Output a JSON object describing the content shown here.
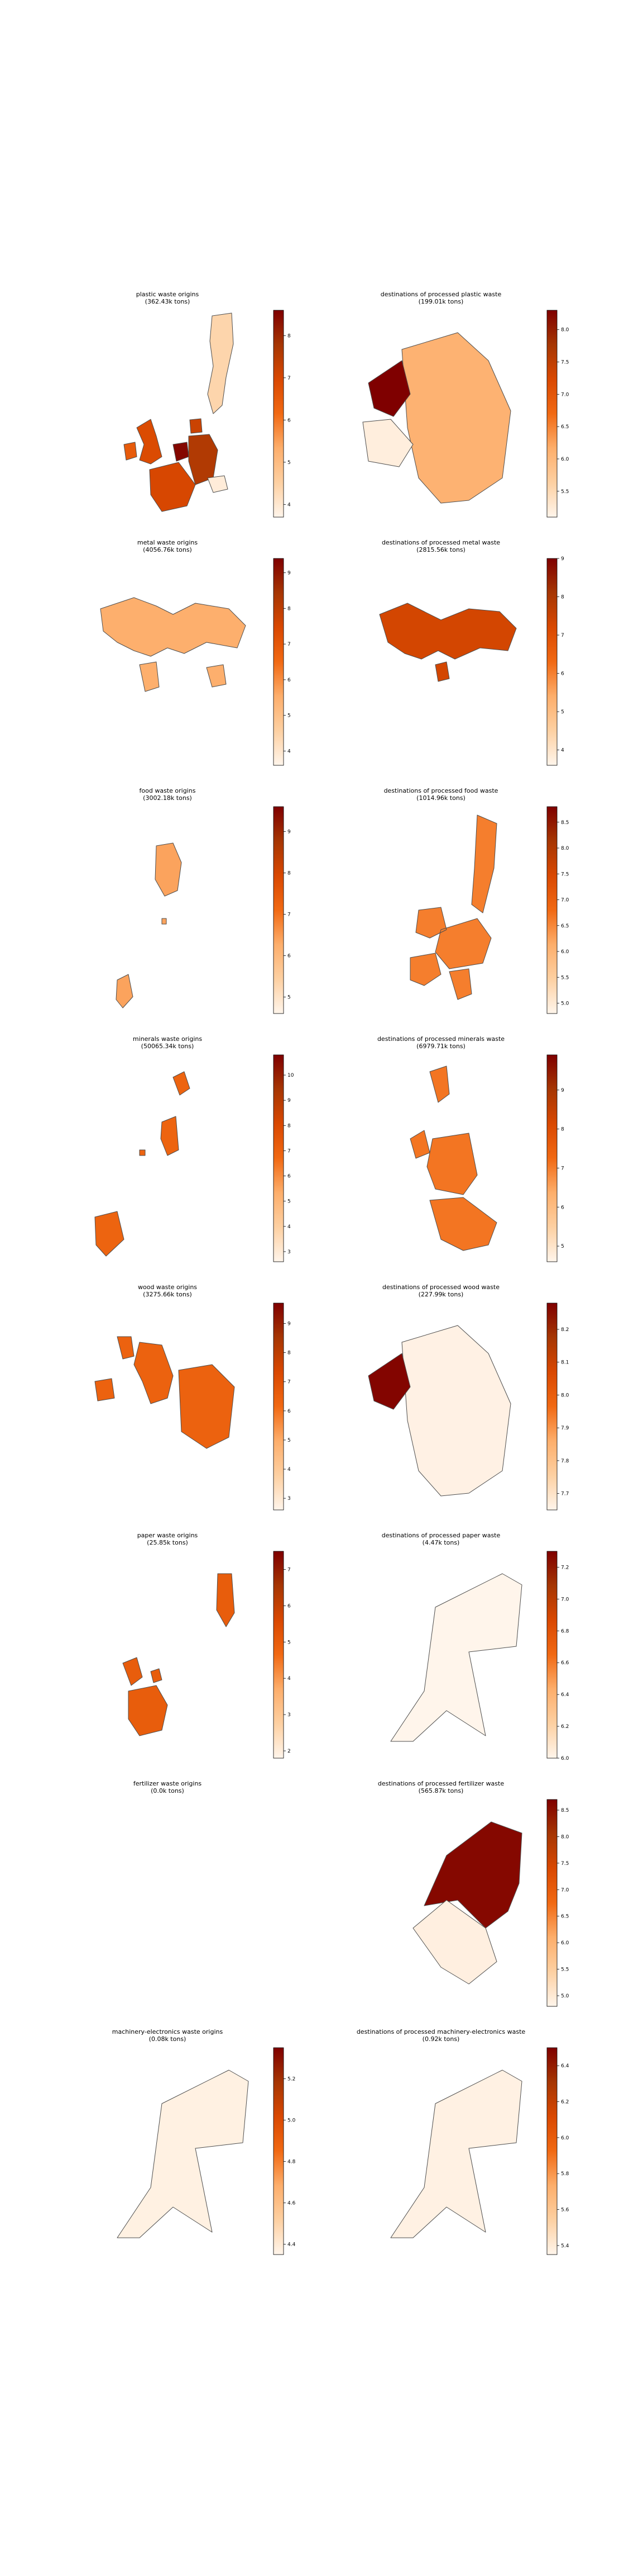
{
  "palette": {
    "ramp": [
      "#fff5eb",
      "#fdd0a2",
      "#fdae6b",
      "#f16913",
      "#d94801",
      "#a63603",
      "#7f0000"
    ],
    "outline": "#4d4d4d"
  },
  "panels": [
    {
      "id": "plastic-origins",
      "title1": "plastic waste origins",
      "title2": "(362.43k tons)",
      "ticks": [
        "4",
        "5",
        "6",
        "7",
        "8"
      ],
      "vmin": 3.7,
      "vmax": 8.6,
      "regions": [
        {
          "shape": "scandinavia",
          "value": 4.4
        },
        {
          "shape": "uk",
          "value": 6.9
        },
        {
          "shape": "ireland",
          "value": 6.5
        },
        {
          "shape": "benelux",
          "value": 8.5
        },
        {
          "shape": "germany",
          "value": 7.6
        },
        {
          "shape": "france",
          "value": 7.0
        },
        {
          "shape": "denmark",
          "value": 7.2
        },
        {
          "shape": "poland",
          "value": 3.9
        }
      ]
    },
    {
      "id": "plastic-dest",
      "title1": "destinations of processed plastic waste",
      "title2": "(199.01k tons)",
      "ticks": [
        "5.5",
        "6.0",
        "6.5",
        "7.0",
        "7.5",
        "8.0"
      ],
      "vmin": 5.1,
      "vmax": 8.3,
      "regions": [
        {
          "shape": "germany-big",
          "value": 6.1
        },
        {
          "shape": "nl-big",
          "value": 8.3
        },
        {
          "shape": "be-big",
          "value": 5.2
        }
      ]
    },
    {
      "id": "metal-origins",
      "title1": "metal waste origins",
      "title2": "(4056.76k tons)",
      "ticks": [
        "4",
        "5",
        "6",
        "7",
        "8",
        "9"
      ],
      "vmin": 3.6,
      "vmax": 9.4,
      "regions": [
        {
          "shape": "wide-europe",
          "value": 5.5
        }
      ]
    },
    {
      "id": "metal-dest",
      "title1": "destinations of processed metal waste",
      "title2": "(2815.56k tons)",
      "ticks": [
        "4",
        "5",
        "6",
        "7",
        "8",
        "9"
      ],
      "vmin": 3.6,
      "vmax": 9.0,
      "regions": [
        {
          "shape": "wide-europe-dest",
          "value": 7.3
        }
      ]
    },
    {
      "id": "food-origins",
      "title1": "food waste origins",
      "title2": "(3002.18k tons)",
      "ticks": [
        "5",
        "6",
        "7",
        "8",
        "9"
      ],
      "vmin": 4.6,
      "vmax": 9.6,
      "regions": [
        {
          "shape": "small-europe",
          "value": 6.4
        }
      ]
    },
    {
      "id": "food-dest",
      "title1": "destinations of processed food waste",
      "title2": "(1014.96k tons)",
      "ticks": [
        "5.0",
        "5.5",
        "6.0",
        "6.5",
        "7.0",
        "7.5",
        "8.0",
        "8.5"
      ],
      "vmin": 4.8,
      "vmax": 8.8,
      "regions": [
        {
          "shape": "full-europe",
          "value": 6.6
        }
      ]
    },
    {
      "id": "minerals-origins",
      "title1": "minerals waste origins",
      "title2": "(50065.34k tons)",
      "ticks": [
        "3",
        "4",
        "5",
        "6",
        "7",
        "8",
        "9",
        "10"
      ],
      "vmin": 2.6,
      "vmax": 10.8,
      "regions": [
        {
          "shape": "sparse-europe",
          "value": 6.9
        }
      ]
    },
    {
      "id": "minerals-dest",
      "title1": "destinations of processed minerals waste",
      "title2": "(6979.71k tons)",
      "ticks": [
        "5",
        "6",
        "7",
        "8",
        "9"
      ],
      "vmin": 4.6,
      "vmax": 9.9,
      "regions": [
        {
          "shape": "central-europe",
          "value": 7.1
        }
      ]
    },
    {
      "id": "wood-origins",
      "title1": "wood waste origins",
      "title2": "(3275.66k tons)",
      "ticks": [
        "3",
        "4",
        "5",
        "6",
        "7",
        "8",
        "9"
      ],
      "vmin": 2.6,
      "vmax": 9.7,
      "regions": [
        {
          "shape": "nw-europe",
          "value": 6.4
        }
      ]
    },
    {
      "id": "wood-dest",
      "title1": "destinations of processed wood waste",
      "title2": "(227.99k tons)",
      "ticks": [
        "7.7",
        "7.8",
        "7.9",
        "8.0",
        "8.1",
        "8.2"
      ],
      "vmin": 7.65,
      "vmax": 8.28,
      "regions": [
        {
          "shape": "germany-big",
          "value": 7.66
        },
        {
          "shape": "nl-big",
          "value": 8.27
        }
      ]
    },
    {
      "id": "paper-origins",
      "title1": "paper waste origins",
      "title2": "(25.85k tons)",
      "ticks": [
        "2",
        "3",
        "4",
        "5",
        "6",
        "7"
      ],
      "vmin": 1.8,
      "vmax": 7.5,
      "regions": [
        {
          "shape": "uk-fr-fi",
          "value": 5.0
        }
      ]
    },
    {
      "id": "paper-dest",
      "title1": "destinations of processed paper waste",
      "title2": "(4.47k tons)",
      "ticks": [
        "6.0",
        "6.2",
        "6.4",
        "6.6",
        "6.8",
        "7.0",
        "7.2"
      ],
      "vmin": 6.0,
      "vmax": 7.3,
      "regions": [
        {
          "shape": "blob",
          "value": 6.0
        }
      ]
    },
    {
      "id": "fertilizer-origins",
      "title1": "fertilizer waste origins",
      "title2": "(0.0k tons)",
      "ticks": [],
      "vmin": 0,
      "vmax": 1,
      "regions": []
    },
    {
      "id": "fertilizer-dest",
      "title1": "destinations of processed fertilizer waste",
      "title2": "(565.87k tons)",
      "ticks": [
        "5.0",
        "5.5",
        "6.0",
        "6.5",
        "7.0",
        "7.5",
        "8.0",
        "8.5"
      ],
      "vmin": 4.8,
      "vmax": 8.7,
      "regions": [
        {
          "shape": "fert-dark",
          "value": 8.6
        },
        {
          "shape": "fert-light",
          "value": 4.9
        }
      ]
    },
    {
      "id": "machinery-origins",
      "title1": "machinery-electronics waste origins",
      "title2": "(0.08k tons)",
      "ticks": [
        "4.4",
        "4.6",
        "4.8",
        "5.0",
        "5.2"
      ],
      "vmin": 4.35,
      "vmax": 5.35,
      "regions": [
        {
          "shape": "blob",
          "value": 4.37
        }
      ]
    },
    {
      "id": "machinery-dest",
      "title1": "destinations of processed machinery-electronics waste",
      "title2": "(0.92k tons)",
      "ticks": [
        "5.4",
        "5.6",
        "5.8",
        "6.0",
        "6.2",
        "6.4"
      ],
      "vmin": 5.35,
      "vmax": 6.5,
      "regions": [
        {
          "shape": "blob",
          "value": 5.37
        }
      ]
    }
  ]
}
